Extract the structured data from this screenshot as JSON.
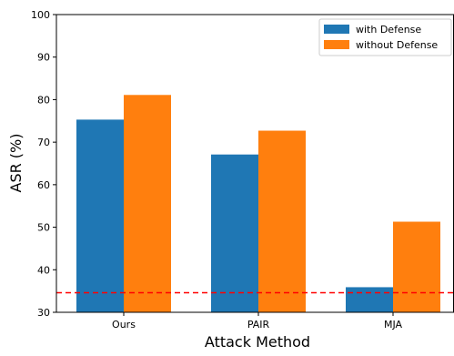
{
  "chart_data": {
    "type": "bar",
    "categories": [
      "Ours",
      "PAIR",
      "MJA"
    ],
    "series": [
      {
        "name": "with Defense",
        "values": [
          75.3,
          67.1,
          35.9
        ],
        "color": "#1f77b4"
      },
      {
        "name": "without Defense",
        "values": [
          81.1,
          72.7,
          51.3
        ],
        "color": "#ff7f0e"
      }
    ],
    "xlabel": "Attack Method",
    "ylabel": "ASR (%)",
    "ylim": [
      30,
      100
    ],
    "yticks": [
      30,
      40,
      50,
      60,
      70,
      80,
      90,
      100
    ],
    "reference_line": {
      "value": 34.6,
      "color": "#ff0000",
      "style": "dashed"
    },
    "legend_position": "top-right",
    "grid": false
  }
}
